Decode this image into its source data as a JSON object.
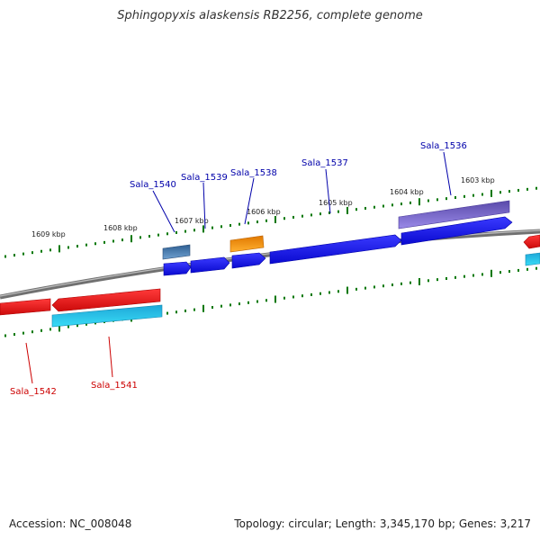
{
  "title": "Sphingopyxis alaskensis RB2256, complete genome",
  "footer": {
    "accession": "Accession: NC_008048",
    "summary": "Topology: circular; Length: 3,345,170 bp; Genes: 3,217"
  },
  "scale_labels": [
    "1609 kbp",
    "1608 kbp",
    "1607 kbp",
    "1606 kbp",
    "1605 kbp",
    "1604 kbp",
    "1603 kbp"
  ],
  "genes_forward": [
    "Sala_1540",
    "Sala_1539",
    "Sala_1538",
    "Sala_1537",
    "Sala_1536"
  ],
  "genes_reverse": [
    "Sala_1542",
    "Sala_1541"
  ],
  "colors": {
    "forward_label": "#0000aa",
    "reverse_label": "#cc0000",
    "backbone": "#808080",
    "tick": "#007700",
    "gene_blue": "#1010ee",
    "gene_red": "#ee1111",
    "gene_cyan": "#22ccee",
    "gene_orange": "#ff9900",
    "gene_purple": "#7766cc",
    "gene_steel": "#4477aa"
  }
}
